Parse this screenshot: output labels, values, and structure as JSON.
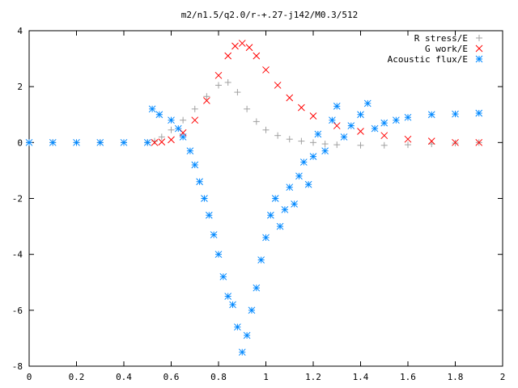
{
  "chart_data": {
    "type": "scatter",
    "title": "m2/n1.5/q2.0/r-+.27-j142/M0.3/512",
    "xlabel": "",
    "ylabel": "",
    "xlim": [
      0,
      2
    ],
    "ylim": [
      -8,
      4
    ],
    "x_ticks": [
      "0",
      "0.2",
      "0.4",
      "0.6",
      "0.8",
      "1",
      "1.2",
      "1.4",
      "1.6",
      "1.8",
      "2"
    ],
    "y_ticks": [
      "4",
      "2",
      "0",
      "-2",
      "-4",
      "-6",
      "-8"
    ],
    "legend_position": "top-right",
    "grid": false,
    "series": [
      {
        "name": "R stress/E",
        "marker": "plus",
        "color": "#a0a0a0",
        "x": [
          0.0,
          0.1,
          0.2,
          0.3,
          0.4,
          0.5,
          0.53,
          0.56,
          0.6,
          0.65,
          0.7,
          0.75,
          0.8,
          0.84,
          0.88,
          0.92,
          0.96,
          1.0,
          1.05,
          1.1,
          1.15,
          1.2,
          1.25,
          1.3,
          1.4,
          1.5,
          1.6,
          1.7,
          1.8,
          1.9
        ],
        "values": [
          0.0,
          0.0,
          0.0,
          0.0,
          0.0,
          0.0,
          0.05,
          0.2,
          0.45,
          0.8,
          1.2,
          1.65,
          2.05,
          2.15,
          1.8,
          1.2,
          0.75,
          0.45,
          0.25,
          0.12,
          0.05,
          0.0,
          -0.05,
          -0.08,
          -0.1,
          -0.1,
          -0.08,
          -0.05,
          -0.02,
          0.0
        ]
      },
      {
        "name": "G work/E",
        "marker": "cross",
        "color": "#ff0000",
        "x": [
          0.53,
          0.56,
          0.6,
          0.65,
          0.7,
          0.75,
          0.8,
          0.84,
          0.87,
          0.9,
          0.93,
          0.96,
          1.0,
          1.05,
          1.1,
          1.15,
          1.2,
          1.3,
          1.4,
          1.5,
          1.6,
          1.7,
          1.8,
          1.9
        ],
        "values": [
          0.0,
          0.02,
          0.1,
          0.35,
          0.8,
          1.5,
          2.4,
          3.1,
          3.45,
          3.55,
          3.4,
          3.1,
          2.6,
          2.05,
          1.6,
          1.25,
          0.95,
          0.6,
          0.4,
          0.25,
          0.12,
          0.05,
          0.0,
          0.0
        ]
      },
      {
        "name": "Acoustic flux/E",
        "marker": "star",
        "color": "#0088ff",
        "x": [
          0.0,
          0.1,
          0.2,
          0.3,
          0.4,
          0.5,
          0.52,
          0.55,
          0.6,
          0.63,
          0.65,
          0.68,
          0.7,
          0.72,
          0.74,
          0.76,
          0.78,
          0.8,
          0.82,
          0.84,
          0.86,
          0.88,
          0.9,
          0.92,
          0.94,
          0.96,
          0.98,
          1.0,
          1.02,
          1.04,
          1.06,
          1.08,
          1.1,
          1.12,
          1.14,
          1.16,
          1.18,
          1.2,
          1.22,
          1.25,
          1.28,
          1.3,
          1.33,
          1.36,
          1.4,
          1.43,
          1.46,
          1.5,
          1.55,
          1.6,
          1.7,
          1.8,
          1.9
        ],
        "values": [
          0.0,
          0.0,
          0.0,
          0.0,
          0.0,
          0.0,
          1.2,
          1.0,
          0.8,
          0.5,
          0.2,
          -0.3,
          -0.8,
          -1.4,
          -2.0,
          -2.6,
          -3.3,
          -4.0,
          -4.8,
          -5.5,
          -5.8,
          -6.6,
          -7.5,
          -6.9,
          -6.0,
          -5.2,
          -4.2,
          -3.4,
          -2.6,
          -2.0,
          -3.0,
          -2.4,
          -1.6,
          -2.2,
          -1.2,
          -0.7,
          -1.5,
          -0.5,
          0.3,
          -0.3,
          0.8,
          1.3,
          0.2,
          0.6,
          1.0,
          1.4,
          0.5,
          0.7,
          0.8,
          0.9,
          1.0,
          1.02,
          1.05
        ]
      }
    ]
  }
}
